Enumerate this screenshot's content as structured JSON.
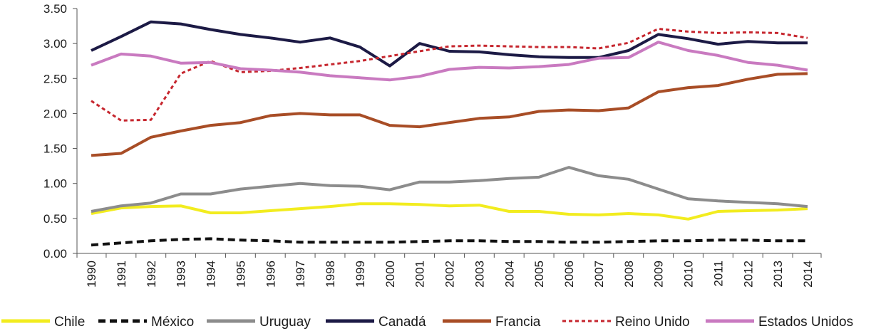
{
  "chart_data": {
    "type": "line",
    "title": "",
    "xlabel": "",
    "ylabel": "",
    "ylim": [
      0,
      3.5
    ],
    "yticks": [
      "0.00",
      "0.50",
      "1.00",
      "1.50",
      "2.00",
      "2.50",
      "3.00",
      "3.50"
    ],
    "ytick_values": [
      0,
      0.5,
      1.0,
      1.5,
      2.0,
      2.5,
      3.0,
      3.5
    ],
    "x": [
      "1990",
      "1991",
      "1992",
      "1993",
      "1994",
      "1995",
      "1996",
      "1997",
      "1998",
      "1999",
      "2000",
      "2001",
      "2002",
      "2003",
      "2004",
      "2005",
      "2006",
      "2007",
      "2008",
      "2009",
      "2010",
      "2011",
      "2012",
      "2013",
      "2014"
    ],
    "grid": false,
    "legend_position": "bottom",
    "series": [
      {
        "name": "Chile",
        "color": "#f2ec1f",
        "style": "solid",
        "values": [
          0.57,
          0.65,
          0.67,
          0.68,
          0.58,
          0.58,
          0.61,
          0.64,
          0.67,
          0.71,
          0.71,
          0.7,
          0.68,
          0.69,
          0.6,
          0.6,
          0.56,
          0.55,
          0.57,
          0.55,
          0.49,
          0.6,
          0.61,
          0.62,
          0.64
        ]
      },
      {
        "name": "México",
        "color": "#111111",
        "style": "dashed",
        "values": [
          0.12,
          0.15,
          0.18,
          0.2,
          0.21,
          0.19,
          0.18,
          0.16,
          0.16,
          0.16,
          0.16,
          0.17,
          0.18,
          0.18,
          0.17,
          0.17,
          0.16,
          0.16,
          0.17,
          0.18,
          0.18,
          0.19,
          0.19,
          0.18,
          0.18
        ]
      },
      {
        "name": "Uruguay",
        "color": "#8c8c8c",
        "style": "solid",
        "values": [
          0.6,
          0.68,
          0.72,
          0.85,
          0.85,
          0.92,
          0.96,
          1.0,
          0.97,
          0.96,
          0.91,
          1.02,
          1.02,
          1.04,
          1.07,
          1.09,
          1.23,
          1.11,
          1.06,
          0.92,
          0.78,
          0.75,
          0.73,
          0.71,
          0.67
        ]
      },
      {
        "name": "Canadá",
        "color": "#1c1a45",
        "style": "solid",
        "values": [
          2.9,
          3.1,
          3.31,
          3.28,
          3.2,
          3.13,
          3.08,
          3.02,
          3.08,
          2.95,
          2.68,
          3.0,
          2.89,
          2.88,
          2.84,
          2.81,
          2.8,
          2.8,
          2.9,
          3.13,
          3.07,
          2.99,
          3.03,
          3.01,
          3.01
        ]
      },
      {
        "name": "Francia",
        "color": "#a84d26",
        "style": "solid",
        "values": [
          1.4,
          1.43,
          1.66,
          1.75,
          1.83,
          1.87,
          1.97,
          2.0,
          1.98,
          1.98,
          1.83,
          1.81,
          1.87,
          1.93,
          1.95,
          2.03,
          2.05,
          2.04,
          2.08,
          2.31,
          2.37,
          2.4,
          2.49,
          2.56,
          2.57
        ]
      },
      {
        "name": "Reino Unido",
        "color": "#c6262e",
        "style": "dotted",
        "values": [
          2.18,
          1.9,
          1.91,
          2.57,
          2.75,
          2.59,
          2.61,
          2.65,
          2.7,
          2.75,
          2.82,
          2.89,
          2.96,
          2.97,
          2.96,
          2.95,
          2.95,
          2.93,
          3.01,
          3.21,
          3.17,
          3.15,
          3.16,
          3.15,
          3.08
        ]
      },
      {
        "name": "Estados Unidos",
        "color": "#c97ac0",
        "style": "solid",
        "values": [
          2.69,
          2.85,
          2.82,
          2.72,
          2.73,
          2.64,
          2.62,
          2.59,
          2.54,
          2.51,
          2.48,
          2.53,
          2.63,
          2.66,
          2.65,
          2.67,
          2.7,
          2.79,
          2.8,
          3.02,
          2.9,
          2.83,
          2.73,
          2.69,
          2.62
        ]
      }
    ]
  }
}
